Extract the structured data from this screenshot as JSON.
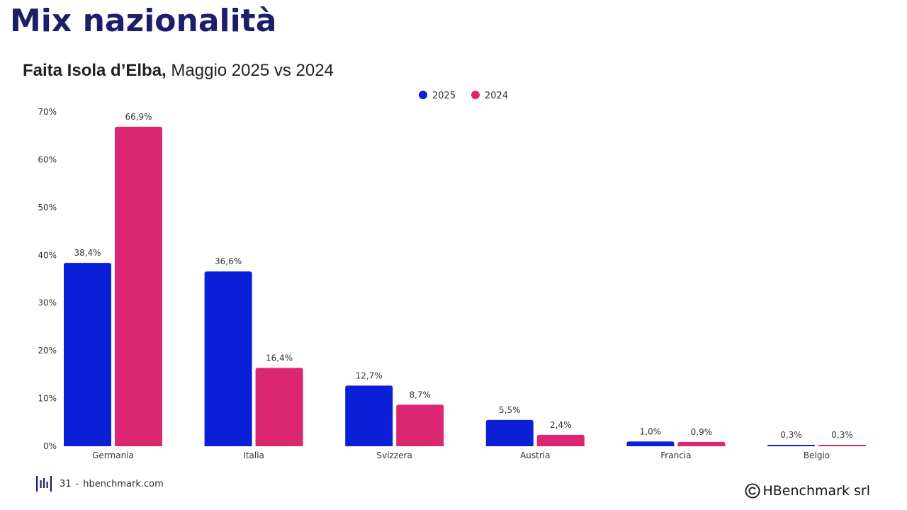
{
  "page": {
    "title": "Mix nazionalità",
    "subtitle_bold": "Faita Isola d’Elba,",
    "subtitle_rest": " Maggio 2025 vs 2024",
    "footer_page": "31",
    "footer_separator": "-",
    "footer_site": "hbenchmark.com",
    "copyright_text": "HBenchmark srl",
    "logo_color": "#1b1f6b"
  },
  "chart_data": {
    "type": "bar",
    "categories": [
      "Germania",
      "Italia",
      "Svizzera",
      "Austria",
      "Francia",
      "Belgio"
    ],
    "series": [
      {
        "name": "2025",
        "color": "#0a1fd6",
        "values": [
          38.4,
          36.6,
          12.7,
          5.5,
          1.0,
          0.3
        ],
        "labels": [
          "38,4%",
          "36,6%",
          "12,7%",
          "5,5%",
          "1,0%",
          "0,3%"
        ]
      },
      {
        "name": "2024",
        "color": "#dd2672",
        "values": [
          66.9,
          16.4,
          8.7,
          2.4,
          0.9,
          0.3
        ],
        "labels": [
          "66,9%",
          "16,4%",
          "8,7%",
          "2,4%",
          "0,9%",
          "0,3%"
        ]
      }
    ],
    "yticks": [
      0,
      10,
      20,
      30,
      40,
      50,
      60,
      70
    ],
    "ytick_labels": [
      "0%",
      "10%",
      "20%",
      "30%",
      "40%",
      "50%",
      "60%",
      "70%"
    ],
    "ylim": [
      0,
      70
    ],
    "grid": false,
    "legend_position": "top-center"
  }
}
